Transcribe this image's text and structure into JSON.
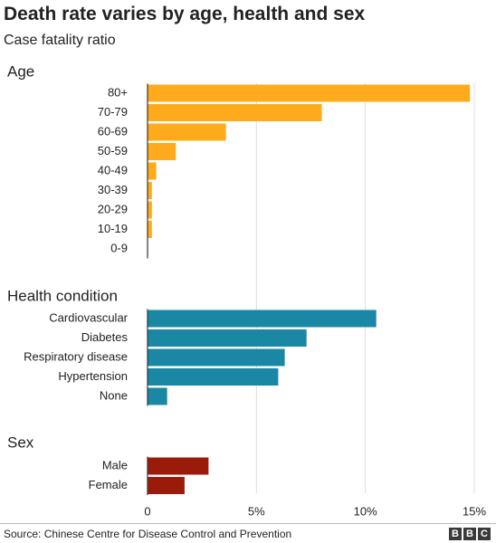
{
  "title": "Death rate varies by age, health and sex",
  "subtitle": "Case fatality ratio",
  "source": "Source: Chinese Centre for Disease Control and Prevention",
  "logo_letters": [
    "B",
    "B",
    "C"
  ],
  "chart_data": {
    "type": "bar",
    "orientation": "horizontal",
    "xlim": [
      0,
      15
    ],
    "x_ticks": [
      {
        "value": 0,
        "label": "0"
      },
      {
        "value": 5,
        "label": "5%"
      },
      {
        "value": 10,
        "label": "10%"
      },
      {
        "value": 15,
        "label": "15%"
      }
    ],
    "grid": true,
    "groups": [
      {
        "name": "Age",
        "color": "#fdab1c",
        "categories": [
          "80+",
          "70-79",
          "60-69",
          "50-59",
          "40-49",
          "30-39",
          "20-29",
          "10-19",
          "0-9"
        ],
        "values": [
          14.8,
          8.0,
          3.6,
          1.3,
          0.4,
          0.2,
          0.2,
          0.2,
          0.0
        ]
      },
      {
        "name": "Health condition",
        "color": "#1a87a5",
        "categories": [
          "Cardiovascular",
          "Diabetes",
          "Respiratory disease",
          "Hypertension",
          "None"
        ],
        "values": [
          10.5,
          7.3,
          6.3,
          6.0,
          0.9
        ]
      },
      {
        "name": "Sex",
        "color": "#9b1b0a",
        "categories": [
          "Male",
          "Female"
        ],
        "values": [
          2.8,
          1.7
        ]
      }
    ]
  }
}
